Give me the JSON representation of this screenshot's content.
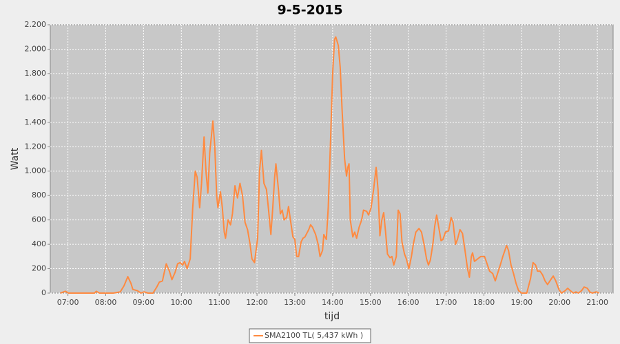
{
  "chart_data": {
    "type": "line",
    "title": "9-5-2015",
    "x_label": "tijd",
    "y_label": "Watt",
    "x": [
      "06:48",
      "06:56",
      "07:01",
      "07:42",
      "07:45",
      "07:50",
      "08:12",
      "08:23",
      "08:29",
      "08:35",
      "08:40",
      "08:43",
      "08:50",
      "08:56",
      "09:01",
      "09:07",
      "09:15",
      "09:21",
      "09:25",
      "09:30",
      "09:32",
      "09:36",
      "09:41",
      "09:45",
      "09:50",
      "09:54",
      "09:58",
      "10:02",
      "10:05",
      "10:09",
      "10:14",
      "10:18",
      "10:22",
      "10:25",
      "10:29",
      "10:32",
      "10:36",
      "10:39",
      "10:42",
      "10:45",
      "10:50",
      "10:53",
      "10:56",
      "10:58",
      "11:02",
      "11:05",
      "11:08",
      "11:10",
      "11:14",
      "11:18",
      "11:21",
      "11:25",
      "11:29",
      "11:33",
      "11:37",
      "11:41",
      "11:45",
      "11:49",
      "11:52",
      "11:56",
      "12:01",
      "12:04",
      "12:07",
      "12:11",
      "12:15",
      "12:18",
      "12:22",
      "12:25",
      "12:28",
      "12:30",
      "12:34",
      "12:37",
      "12:40",
      "12:43",
      "12:47",
      "12:50",
      "12:53",
      "12:57",
      "13:00",
      "13:03",
      "13:06",
      "13:10",
      "13:13",
      "13:16",
      "13:22",
      "13:25",
      "13:28",
      "13:33",
      "13:37",
      "13:40",
      "13:44",
      "13:46",
      "13:50",
      "13:53",
      "13:57",
      "14:00",
      "14:03",
      "14:05",
      "14:09",
      "14:12",
      "14:15",
      "14:19",
      "14:22",
      "14:24",
      "14:26",
      "14:28",
      "14:32",
      "14:35",
      "14:38",
      "14:42",
      "14:46",
      "14:49",
      "14:54",
      "14:57",
      "15:01",
      "15:05",
      "15:09",
      "15:12",
      "15:15",
      "15:18",
      "15:21",
      "15:24",
      "15:27",
      "15:31",
      "15:34",
      "15:37",
      "15:41",
      "15:44",
      "15:47",
      "15:50",
      "15:54",
      "15:57",
      "16:01",
      "16:05",
      "16:08",
      "16:12",
      "16:17",
      "16:21",
      "16:25",
      "16:29",
      "16:32",
      "16:35",
      "16:39",
      "16:42",
      "16:45",
      "16:48",
      "16:52",
      "16:55",
      "16:59",
      "17:04",
      "17:08",
      "17:11",
      "17:15",
      "17:18",
      "17:22",
      "17:26",
      "17:30",
      "17:34",
      "17:37",
      "17:40",
      "17:42",
      "17:45",
      "17:50",
      "17:55",
      "18:01",
      "18:05",
      "18:09",
      "18:14",
      "18:18",
      "18:21",
      "18:26",
      "18:30",
      "18:36",
      "18:39",
      "18:43",
      "18:47",
      "18:51",
      "18:55",
      "19:00",
      "19:08",
      "19:14",
      "19:18",
      "19:22",
      "19:25",
      "19:29",
      "19:33",
      "19:37",
      "19:41",
      "19:46",
      "19:50",
      "19:54",
      "19:59",
      "20:03",
      "20:09",
      "20:13",
      "20:17",
      "20:22",
      "20:26",
      "20:30",
      "20:35",
      "20:39",
      "20:44",
      "20:48",
      "20:52",
      "20:58",
      "21:03"
    ],
    "series": [
      {
        "name": "SMA2100 TL( 5,437 kWh )",
        "color": "#ff8a40",
        "values": [
          0,
          15,
          0,
          0,
          15,
          0,
          0,
          10,
          60,
          135,
          80,
          30,
          20,
          0,
          10,
          0,
          0,
          50,
          90,
          100,
          150,
          240,
          180,
          110,
          170,
          240,
          250,
          230,
          260,
          200,
          280,
          700,
          1000,
          950,
          700,
          900,
          1280,
          1000,
          820,
          1150,
          1410,
          1200,
          800,
          700,
          830,
          700,
          500,
          450,
          600,
          560,
          650,
          880,
          780,
          900,
          800,
          580,
          520,
          400,
          280,
          250,
          450,
          1000,
          1170,
          900,
          850,
          700,
          480,
          700,
          950,
          1060,
          850,
          650,
          680,
          600,
          620,
          710,
          600,
          460,
          440,
          300,
          300,
          420,
          450,
          460,
          520,
          560,
          540,
          480,
          400,
          300,
          350,
          480,
          440,
          700,
          1300,
          1800,
          2080,
          2100,
          2030,
          1850,
          1500,
          1100,
          960,
          1030,
          1060,
          600,
          460,
          500,
          450,
          540,
          600,
          680,
          670,
          640,
          700,
          850,
          1030,
          850,
          470,
          600,
          660,
          500,
          320,
          290,
          300,
          230,
          300,
          680,
          650,
          420,
          320,
          280,
          200,
          300,
          400,
          500,
          530,
          500,
          400,
          280,
          230,
          270,
          400,
          550,
          640,
          550,
          430,
          440,
          500,
          510,
          620,
          580,
          400,
          440,
          520,
          490,
          350,
          200,
          130,
          300,
          330,
          260,
          280,
          300,
          300,
          240,
          180,
          160,
          100,
          150,
          230,
          300,
          390,
          350,
          230,
          160,
          80,
          20,
          0,
          0,
          120,
          250,
          230,
          180,
          180,
          150,
          100,
          70,
          110,
          140,
          100,
          30,
          0,
          20,
          40,
          20,
          0,
          10,
          0,
          20,
          50,
          40,
          10,
          0,
          10,
          0
        ]
      }
    ],
    "xlim": [
      "06:32",
      "21:25"
    ],
    "xticks": [
      "07:00",
      "08:00",
      "09:00",
      "10:00",
      "11:00",
      "12:00",
      "13:00",
      "14:00",
      "15:00",
      "16:00",
      "17:00",
      "18:00",
      "19:00",
      "20:00",
      "21:00"
    ],
    "ylim": [
      0,
      2200
    ],
    "yticks": [
      0,
      200,
      400,
      600,
      800,
      {
        "value": 1000,
        "label": "1.000"
      },
      {
        "value": 1200,
        "label": "1.200"
      },
      {
        "value": 1400,
        "label": "1.400"
      },
      {
        "value": 1600,
        "label": "1.600"
      },
      {
        "value": 1800,
        "label": "1.800"
      },
      {
        "value": 2000,
        "label": "2.000"
      },
      {
        "value": 2200,
        "label": "2.200"
      }
    ],
    "grid": true,
    "legend": "bottom"
  }
}
